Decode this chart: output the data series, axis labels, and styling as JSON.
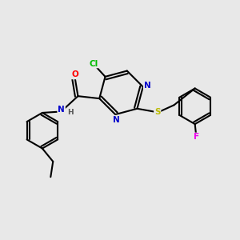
{
  "bg_color": "#e8e8e8",
  "bond_color": "#000000",
  "bond_width": 1.5,
  "atom_colors": {
    "N": "#0000cc",
    "O": "#ff0000",
    "S": "#bbbb00",
    "Cl": "#00bb00",
    "F": "#ee00ee",
    "C": "#000000",
    "H": "#555555"
  },
  "font_size": 7.5
}
